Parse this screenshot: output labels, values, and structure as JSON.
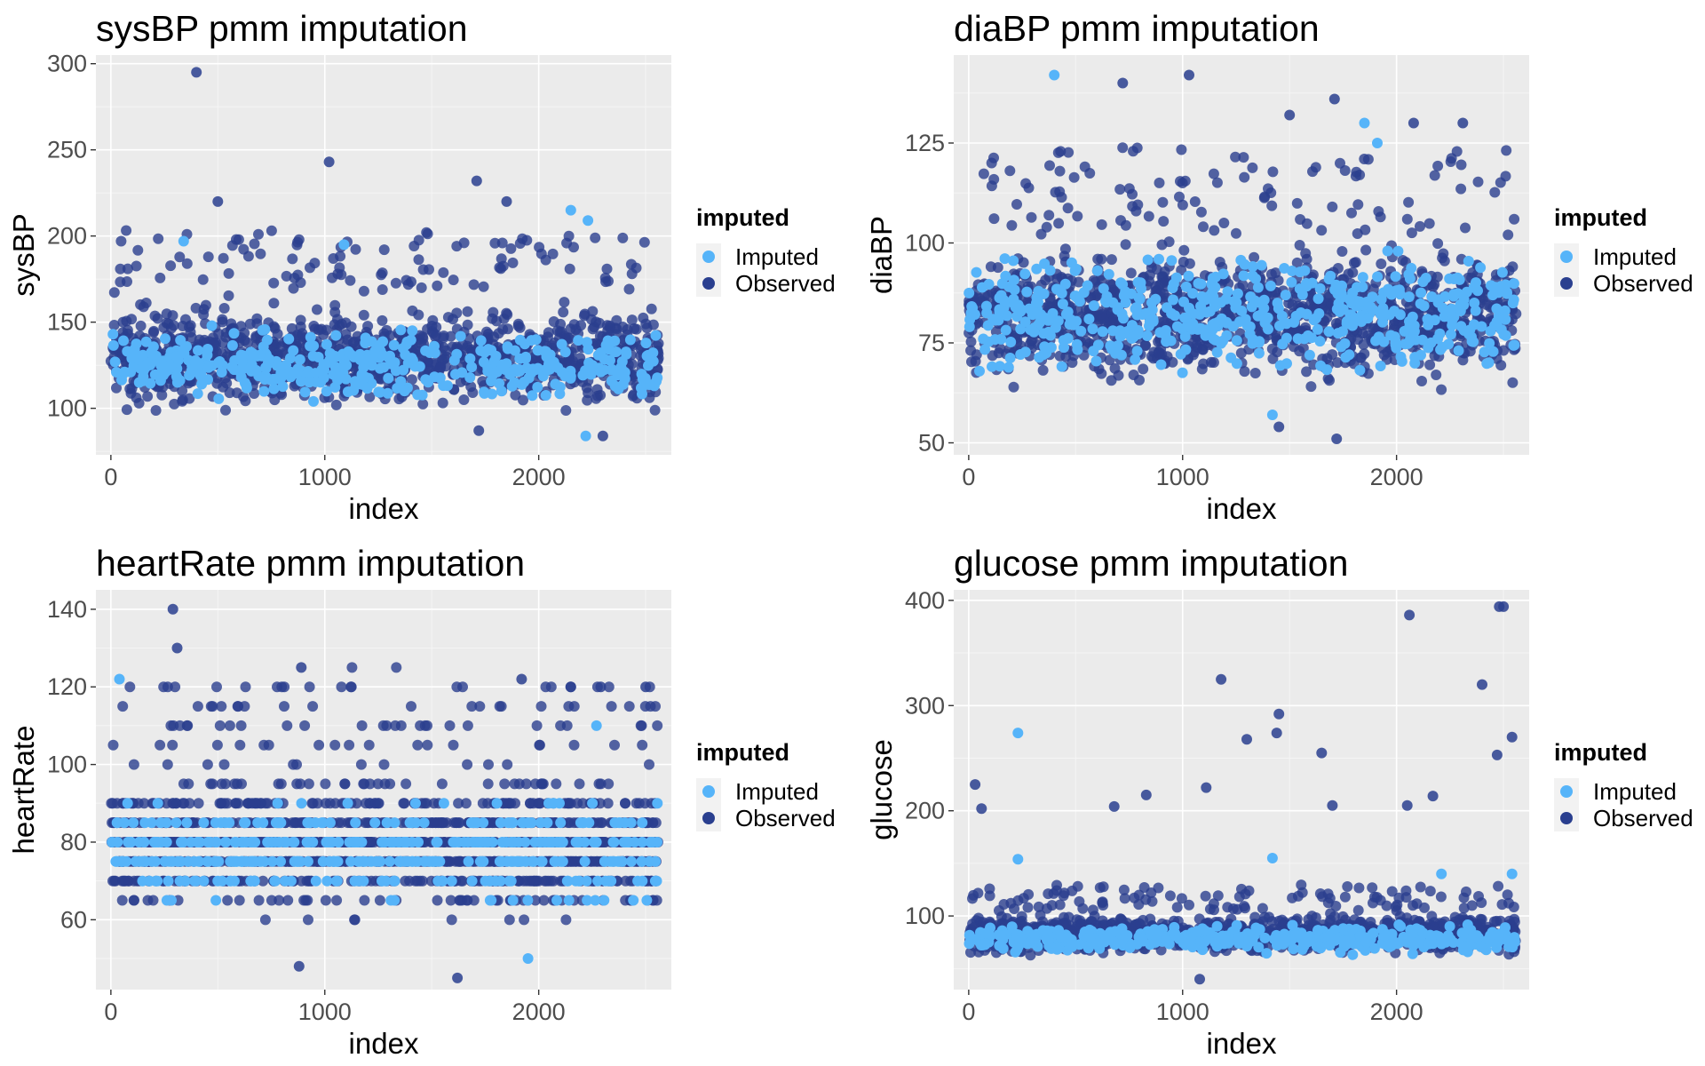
{
  "colors": {
    "panel_bg": "#EBEBEB",
    "grid_major": "#FFFFFF",
    "axis_text": "#4D4D4D",
    "title_text": "#000000",
    "imputed": "#56B4F9",
    "observed": "#2A3F8F"
  },
  "legend": {
    "title": "imputed",
    "placement": "right",
    "entries": [
      {
        "label": "Imputed",
        "color": "#56B4F9"
      },
      {
        "label": "Observed",
        "color": "#2A3F8F"
      }
    ]
  },
  "chart_data": [
    {
      "type": "scatter",
      "title": "sysBP pmm imputation",
      "xlabel": "index",
      "ylabel": "sysBP",
      "xlim": [
        -70,
        2620
      ],
      "ylim": [
        73,
        305
      ],
      "xticks": [
        0,
        1000,
        2000
      ],
      "yticks": [
        100,
        150,
        200,
        250,
        300
      ],
      "grid": true,
      "points": {
        "x_range": [
          0,
          2560
        ],
        "observed_band": [
          95,
          165
        ],
        "imputed_band": [
          100,
          150
        ],
        "observed_count": 1300,
        "imputed_count": 420
      },
      "highlights": [
        {
          "x": 400,
          "y": 295,
          "series": "Observed"
        },
        {
          "x": 1020,
          "y": 243,
          "series": "Observed"
        },
        {
          "x": 1710,
          "y": 232,
          "series": "Observed"
        },
        {
          "x": 2150,
          "y": 215,
          "series": "Imputed"
        },
        {
          "x": 2230,
          "y": 209,
          "series": "Imputed"
        },
        {
          "x": 340,
          "y": 197,
          "series": "Imputed"
        },
        {
          "x": 1090,
          "y": 195,
          "series": "Imputed"
        },
        {
          "x": 2220,
          "y": 84,
          "series": "Imputed"
        },
        {
          "x": 2300,
          "y": 84,
          "series": "Observed"
        },
        {
          "x": 1720,
          "y": 87,
          "series": "Observed"
        },
        {
          "x": 1850,
          "y": 220,
          "series": "Observed"
        },
        {
          "x": 500,
          "y": 220,
          "series": "Observed"
        }
      ]
    },
    {
      "type": "scatter",
      "title": "diaBP pmm imputation",
      "xlabel": "index",
      "ylabel": "diaBP",
      "xlim": [
        -70,
        2620
      ],
      "ylim": [
        47,
        147
      ],
      "xticks": [
        0,
        1000,
        2000
      ],
      "yticks": [
        50,
        75,
        100,
        125
      ],
      "grid": true,
      "points": {
        "x_range": [
          0,
          2560
        ],
        "observed_band": [
          62,
          102
        ],
        "imputed_band": [
          64,
          100
        ],
        "observed_count": 1300,
        "imputed_count": 520
      },
      "highlights": [
        {
          "x": 400,
          "y": 142,
          "series": "Imputed"
        },
        {
          "x": 1030,
          "y": 142,
          "series": "Observed"
        },
        {
          "x": 720,
          "y": 140,
          "series": "Observed"
        },
        {
          "x": 1710,
          "y": 136,
          "series": "Observed"
        },
        {
          "x": 1500,
          "y": 132,
          "series": "Observed"
        },
        {
          "x": 1850,
          "y": 130,
          "series": "Imputed"
        },
        {
          "x": 2080,
          "y": 130,
          "series": "Observed"
        },
        {
          "x": 2310,
          "y": 130,
          "series": "Observed"
        },
        {
          "x": 1910,
          "y": 125,
          "series": "Imputed"
        },
        {
          "x": 1720,
          "y": 51,
          "series": "Observed"
        },
        {
          "x": 1450,
          "y": 54,
          "series": "Observed"
        },
        {
          "x": 1420,
          "y": 57,
          "series": "Imputed"
        }
      ]
    },
    {
      "type": "scatter",
      "title": "heartRate pmm imputation",
      "xlabel": "index",
      "ylabel": "heartRate",
      "xlim": [
        -70,
        2620
      ],
      "ylim": [
        42,
        145
      ],
      "xticks": [
        0,
        1000,
        2000
      ],
      "yticks": [
        60,
        80,
        100,
        120,
        140
      ],
      "grid": true,
      "points": {
        "x_range": [
          0,
          2560
        ],
        "observed_band": [
          58,
          100
        ],
        "imputed_band": [
          60,
          95
        ],
        "observed_count": 1300,
        "imputed_count": 420
      },
      "highlights": [
        {
          "x": 290,
          "y": 140,
          "series": "Observed"
        },
        {
          "x": 310,
          "y": 130,
          "series": "Observed"
        },
        {
          "x": 890,
          "y": 125,
          "series": "Observed"
        },
        {
          "x": 40,
          "y": 122,
          "series": "Imputed"
        },
        {
          "x": 1920,
          "y": 122,
          "series": "Observed"
        },
        {
          "x": 2150,
          "y": 120,
          "series": "Observed"
        },
        {
          "x": 2290,
          "y": 120,
          "series": "Observed"
        },
        {
          "x": 2500,
          "y": 120,
          "series": "Observed"
        },
        {
          "x": 2270,
          "y": 110,
          "series": "Imputed"
        },
        {
          "x": 1620,
          "y": 45,
          "series": "Observed"
        },
        {
          "x": 880,
          "y": 48,
          "series": "Observed"
        },
        {
          "x": 1950,
          "y": 50,
          "series": "Imputed"
        }
      ]
    },
    {
      "type": "scatter",
      "title": "glucose pmm imputation",
      "xlabel": "index",
      "ylabel": "glucose",
      "xlim": [
        -70,
        2620
      ],
      "ylim": [
        30,
        410
      ],
      "xticks": [
        0,
        1000,
        2000
      ],
      "yticks": [
        100,
        200,
        300,
        400
      ],
      "grid": true,
      "points": {
        "x_range": [
          0,
          2560
        ],
        "observed_band": [
          60,
          105
        ],
        "imputed_band": [
          62,
          95
        ],
        "observed_count": 1300,
        "imputed_count": 420
      },
      "highlights": [
        {
          "x": 2480,
          "y": 394,
          "series": "Observed"
        },
        {
          "x": 2500,
          "y": 394,
          "series": "Observed"
        },
        {
          "x": 2060,
          "y": 386,
          "series": "Observed"
        },
        {
          "x": 1180,
          "y": 325,
          "series": "Observed"
        },
        {
          "x": 2400,
          "y": 320,
          "series": "Observed"
        },
        {
          "x": 1450,
          "y": 292,
          "series": "Observed"
        },
        {
          "x": 230,
          "y": 274,
          "series": "Imputed"
        },
        {
          "x": 1440,
          "y": 274,
          "series": "Observed"
        },
        {
          "x": 2540,
          "y": 270,
          "series": "Observed"
        },
        {
          "x": 1300,
          "y": 268,
          "series": "Observed"
        },
        {
          "x": 1650,
          "y": 255,
          "series": "Observed"
        },
        {
          "x": 2470,
          "y": 253,
          "series": "Observed"
        },
        {
          "x": 30,
          "y": 225,
          "series": "Observed"
        },
        {
          "x": 1110,
          "y": 222,
          "series": "Observed"
        },
        {
          "x": 830,
          "y": 215,
          "series": "Observed"
        },
        {
          "x": 2170,
          "y": 214,
          "series": "Observed"
        },
        {
          "x": 1700,
          "y": 205,
          "series": "Observed"
        },
        {
          "x": 2050,
          "y": 205,
          "series": "Observed"
        },
        {
          "x": 680,
          "y": 204,
          "series": "Observed"
        },
        {
          "x": 60,
          "y": 202,
          "series": "Observed"
        },
        {
          "x": 230,
          "y": 154,
          "series": "Imputed"
        },
        {
          "x": 1420,
          "y": 155,
          "series": "Imputed"
        },
        {
          "x": 2540,
          "y": 140,
          "series": "Imputed"
        },
        {
          "x": 2210,
          "y": 140,
          "series": "Imputed"
        },
        {
          "x": 1080,
          "y": 40,
          "series": "Observed"
        }
      ]
    }
  ]
}
